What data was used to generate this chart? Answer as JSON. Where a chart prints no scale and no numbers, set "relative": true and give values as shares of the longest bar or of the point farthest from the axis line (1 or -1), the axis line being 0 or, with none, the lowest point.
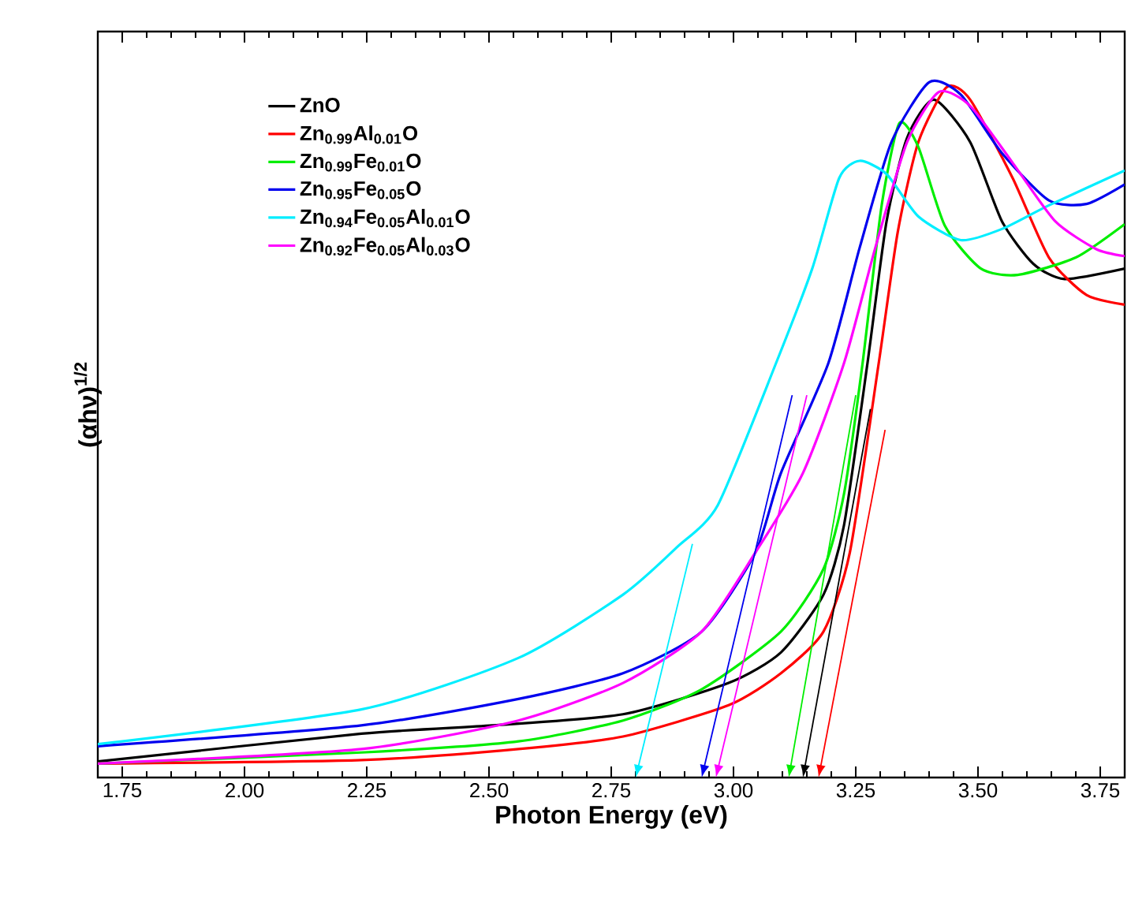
{
  "chart_data": {
    "type": "line",
    "relative": true,
    "xlabel": "Photon Energy (eV)",
    "ylabel": "(αhν)$^{1/2}$",
    "xlim": [
      1.7,
      3.8
    ],
    "xticks": [
      {
        "value": 1.75,
        "label": "1.75"
      },
      {
        "value": 2.0,
        "label": "2.00"
      },
      {
        "value": 2.25,
        "label": "2.25"
      },
      {
        "value": 2.5,
        "label": "2.50"
      },
      {
        "value": 2.75,
        "label": "2.75"
      },
      {
        "value": 3.0,
        "label": "3.00"
      },
      {
        "value": 3.25,
        "label": "3.25"
      },
      {
        "value": 3.5,
        "label": "3.50"
      },
      {
        "value": 3.75,
        "label": "3.75"
      }
    ],
    "legend": "top left",
    "grid": false,
    "marker": "none",
    "line_style": "solid",
    "series": [
      {
        "name": "ZnO",
        "color": "#000000",
        "x": [
          1.7,
          2.239,
          2.507,
          2.774,
          2.99,
          3.097,
          3.184,
          3.226,
          3.274,
          3.313,
          3.355,
          3.41,
          3.484,
          3.549,
          3.613,
          3.677,
          3.8
        ],
        "values": [
          0.023,
          0.063,
          0.075,
          0.091,
          0.136,
          0.18,
          0.263,
          0.363,
          0.596,
          0.8,
          0.92,
          0.975,
          0.914,
          0.8,
          0.739,
          0.717,
          0.732
        ]
      },
      {
        "name": "Zn$_{0.99}$Al$_{0.01}$O",
        "color": "#ff0000",
        "x": [
          1.7,
          2.239,
          2.56,
          2.774,
          2.99,
          3.097,
          3.184,
          3.238,
          3.297,
          3.336,
          3.378,
          3.436,
          3.484,
          3.571,
          3.645,
          3.722,
          3.8
        ],
        "values": [
          0.02,
          0.025,
          0.041,
          0.059,
          0.104,
          0.15,
          0.21,
          0.324,
          0.596,
          0.785,
          0.914,
          0.993,
          0.975,
          0.862,
          0.748,
          0.694,
          0.68
        ]
      },
      {
        "name": "Zn$_{0.99}$Fe$_{0.01}$O",
        "color": "#00ee00",
        "x": [
          1.7,
          2.239,
          2.56,
          2.774,
          2.935,
          3.097,
          3.184,
          3.226,
          3.264,
          3.303,
          3.339,
          3.378,
          3.432,
          3.506,
          3.581,
          3.7,
          3.8
        ],
        "values": [
          0.02,
          0.036,
          0.052,
          0.082,
          0.127,
          0.21,
          0.3,
          0.408,
          0.596,
          0.823,
          0.941,
          0.907,
          0.794,
          0.732,
          0.723,
          0.748,
          0.796
        ]
      },
      {
        "name": "Zn$_{0.95}$Fe$_{0.05}$O",
        "color": "#0000ee",
        "x": [
          1.7,
          2.239,
          2.56,
          2.774,
          2.935,
          3.045,
          3.097,
          3.194,
          3.258,
          3.323,
          3.4,
          3.465,
          3.549,
          3.645,
          3.722,
          3.8
        ],
        "values": [
          0.045,
          0.075,
          0.113,
          0.15,
          0.21,
          0.324,
          0.438,
          0.596,
          0.762,
          0.914,
          1.0,
          0.982,
          0.898,
          0.83,
          0.825,
          0.853
        ]
      },
      {
        "name": "Zn$_{0.94}$Fe$_{0.05}$Al$_{0.01}$O",
        "color": "#00eeff",
        "x": [
          1.7,
          2.239,
          2.56,
          2.774,
          2.884,
          2.968,
          3.087,
          3.161,
          3.216,
          3.258,
          3.313,
          3.378,
          3.465,
          3.549,
          3.645,
          3.8
        ],
        "values": [
          0.048,
          0.098,
          0.172,
          0.263,
          0.331,
          0.392,
          0.596,
          0.732,
          0.862,
          0.887,
          0.868,
          0.807,
          0.773,
          0.789,
          0.823,
          0.873
        ]
      },
      {
        "name": "Zn$_{0.92}$Fe$_{0.05}$Al$_{0.03}$O",
        "color": "#ff00ff",
        "x": [
          1.7,
          2.239,
          2.56,
          2.774,
          2.935,
          3.045,
          3.142,
          3.226,
          3.29,
          3.355,
          3.42,
          3.484,
          3.571,
          3.658,
          3.742,
          3.8
        ],
        "values": [
          0.02,
          0.041,
          0.082,
          0.136,
          0.21,
          0.324,
          0.438,
          0.596,
          0.762,
          0.914,
          0.986,
          0.966,
          0.884,
          0.8,
          0.76,
          0.75
        ]
      }
    ]
  }
}
